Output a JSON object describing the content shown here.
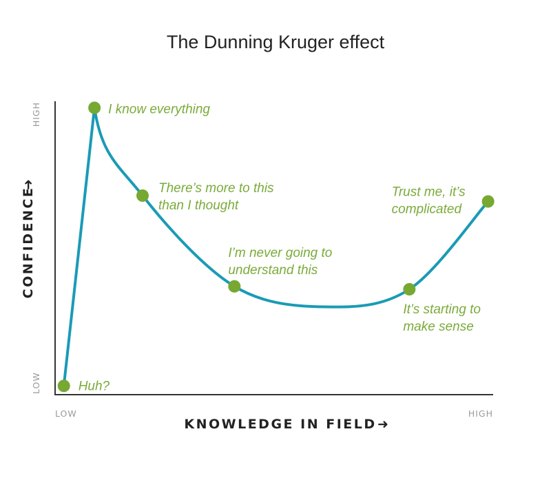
{
  "chart_data": {
    "type": "line",
    "title": "The Dunning Kruger effect",
    "xlabel": "KNOWLEDGE IN FIELD",
    "ylabel": "CONFIDENCE",
    "x_arrow": "➜",
    "y_arrow": "➜",
    "xticks": [
      "LOW",
      "HIGH"
    ],
    "yticks": [
      "LOW",
      "HIGH"
    ],
    "xlim": [
      0,
      100
    ],
    "ylim": [
      0,
      100
    ],
    "grid": false,
    "line_color": "#1a9bb5",
    "marker_color": "#76a832",
    "annotation_color": "#7aab3a",
    "curve_minimum": {
      "x": 62,
      "y": 30
    },
    "points": [
      {
        "x": 2,
        "y": 3,
        "label": [
          "Huh?"
        ]
      },
      {
        "x": 9,
        "y": 98,
        "label": [
          "I know everything"
        ]
      },
      {
        "x": 20,
        "y": 68,
        "label": [
          "There’s more to this",
          "than I thought"
        ]
      },
      {
        "x": 41,
        "y": 37,
        "label": [
          "I’m never going to",
          "understand this"
        ]
      },
      {
        "x": 81,
        "y": 36,
        "label": [
          "It’s starting to",
          "make sense"
        ]
      },
      {
        "x": 99,
        "y": 66,
        "label": [
          "Trust me, it’s",
          "complicated"
        ]
      }
    ]
  }
}
